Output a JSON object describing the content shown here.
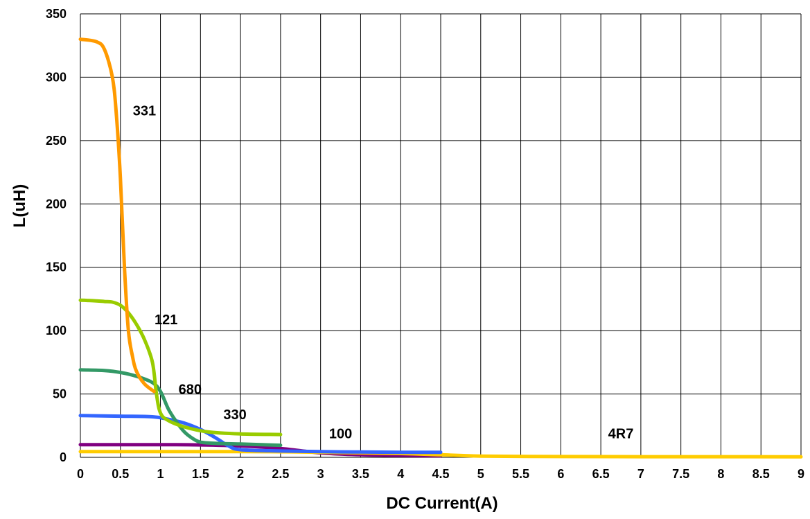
{
  "chart_data": {
    "type": "line",
    "title": "",
    "xlabel": "DC Current(A)",
    "ylabel": "L(uH)",
    "xlim": [
      0,
      9
    ],
    "ylim": [
      0,
      350
    ],
    "x_ticks": [
      "0",
      "0.5",
      "1",
      "1.5",
      "2",
      "2.5",
      "3",
      "3.5",
      "4",
      "4.5",
      "5",
      "5.5",
      "6",
      "6.5",
      "7",
      "7.5",
      "8",
      "8.5",
      "9"
    ],
    "y_ticks": [
      "0",
      "50",
      "100",
      "150",
      "200",
      "250",
      "300",
      "350"
    ],
    "grid": true,
    "legend": "none",
    "series": [
      {
        "name": "331",
        "color": "#FF9A00",
        "points": [
          [
            0,
            330
          ],
          [
            0.2,
            328
          ],
          [
            0.3,
            322
          ],
          [
            0.4,
            300
          ],
          [
            0.45,
            270
          ],
          [
            0.5,
            220
          ],
          [
            0.55,
            150
          ],
          [
            0.6,
            100
          ],
          [
            0.65,
            80
          ],
          [
            0.7,
            68
          ],
          [
            0.8,
            58
          ],
          [
            0.92,
            52
          ]
        ]
      },
      {
        "name": "121",
        "color": "#99CC00",
        "points": [
          [
            0,
            124
          ],
          [
            0.2,
            123.5
          ],
          [
            0.3,
            123
          ],
          [
            0.4,
            122.5
          ],
          [
            0.5,
            120
          ],
          [
            0.6,
            114
          ],
          [
            0.7,
            105
          ],
          [
            0.8,
            93
          ],
          [
            0.9,
            75
          ],
          [
            0.95,
            50
          ],
          [
            1.0,
            35
          ],
          [
            1.1,
            29
          ],
          [
            1.3,
            24
          ],
          [
            1.6,
            20
          ],
          [
            2.0,
            18.5
          ],
          [
            2.5,
            18
          ]
        ]
      },
      {
        "name": "680",
        "color": "#339966",
        "points": [
          [
            0,
            69
          ],
          [
            0.3,
            68.5
          ],
          [
            0.5,
            67
          ],
          [
            0.7,
            64
          ],
          [
            0.9,
            59
          ],
          [
            1.0,
            52
          ],
          [
            1.1,
            38
          ],
          [
            1.2,
            28
          ],
          [
            1.3,
            20
          ],
          [
            1.4,
            15
          ],
          [
            1.5,
            12
          ],
          [
            1.7,
            11
          ],
          [
            2.0,
            10.5
          ],
          [
            2.5,
            9.5
          ]
        ]
      },
      {
        "name": "330",
        "color": "#3366FF",
        "points": [
          [
            0,
            33
          ],
          [
            0.5,
            32.5
          ],
          [
            0.9,
            32
          ],
          [
            1.1,
            30
          ],
          [
            1.3,
            27
          ],
          [
            1.5,
            22
          ],
          [
            1.7,
            15
          ],
          [
            1.85,
            9
          ],
          [
            2.0,
            6
          ],
          [
            2.5,
            5
          ],
          [
            3.0,
            4.5
          ],
          [
            3.5,
            4.2
          ],
          [
            4.0,
            4.0
          ],
          [
            4.5,
            4.0
          ]
        ]
      },
      {
        "name": "100",
        "color": "#800080",
        "points": [
          [
            0,
            10
          ],
          [
            1.0,
            10
          ],
          [
            1.5,
            9.8
          ],
          [
            2.0,
            9
          ],
          [
            2.5,
            7
          ],
          [
            3.0,
            3.5
          ],
          [
            3.5,
            2.0
          ],
          [
            4.0,
            1.5
          ],
          [
            4.5,
            1.2
          ]
        ]
      },
      {
        "name": "4R7",
        "color": "#FFCC00",
        "points": [
          [
            0,
            4.5
          ],
          [
            1.0,
            4.5
          ],
          [
            2.0,
            4.5
          ],
          [
            2.5,
            4.4
          ],
          [
            3.0,
            4.0
          ],
          [
            4.0,
            3.0
          ],
          [
            4.5,
            2.0
          ],
          [
            5.0,
            1.0
          ],
          [
            6.0,
            0.6
          ],
          [
            7.0,
            0.5
          ],
          [
            8.0,
            0.5
          ],
          [
            9.0,
            0.4
          ]
        ]
      }
    ],
    "annotations": [
      {
        "text": "331",
        "x": 0.8,
        "y": 270
      },
      {
        "text": "121",
        "x": 1.07,
        "y": 105
      },
      {
        "text": "680",
        "x": 1.37,
        "y": 50
      },
      {
        "text": "330",
        "x": 1.93,
        "y": 30
      },
      {
        "text": "100",
        "x": 3.25,
        "y": 15
      },
      {
        "text": "4R7",
        "x": 6.75,
        "y": 15
      }
    ]
  }
}
